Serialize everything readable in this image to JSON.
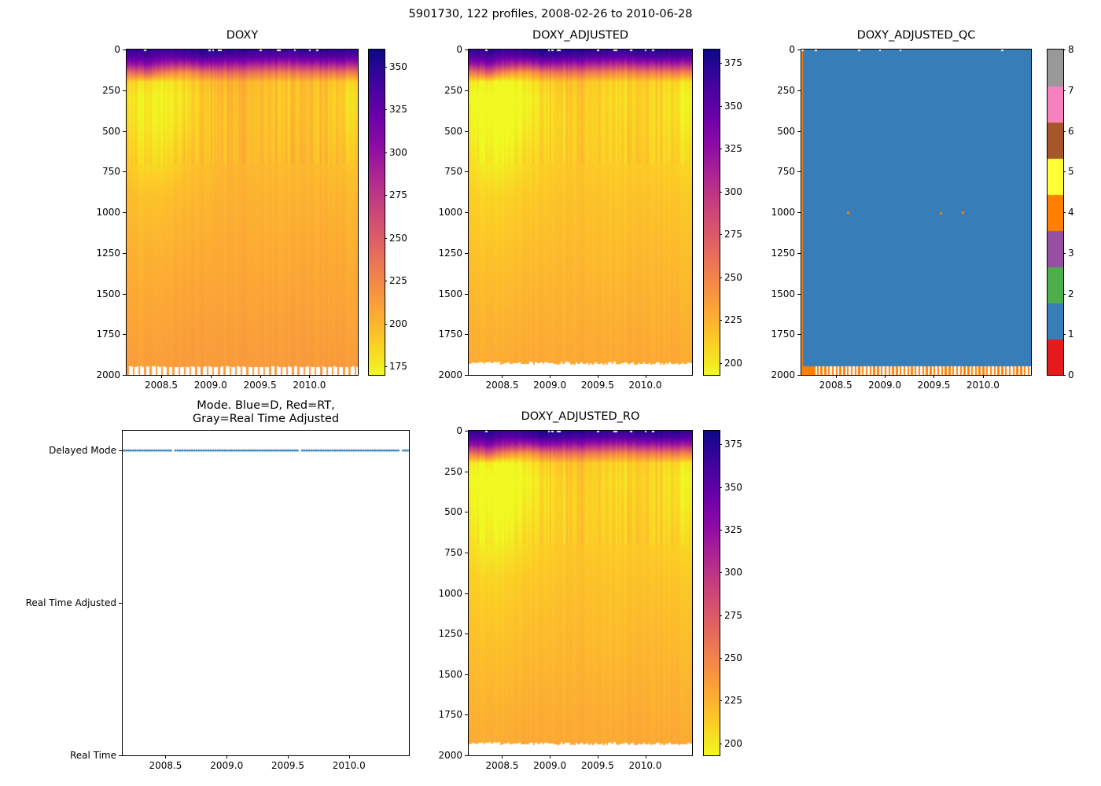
{
  "figure": {
    "title": "5901730, 122 profiles, 2008-02-26 to 2010-06-28"
  },
  "chart_data": [
    {
      "type": "heatmap",
      "title": "DOXY",
      "n_profiles": 122,
      "xlim": [
        2008.15,
        2010.49
      ],
      "x_tick_labels": [
        "2008.5",
        "2009.0",
        "2009.5",
        "2010.0"
      ],
      "x_tick_values": [
        2008.5,
        2009.0,
        2009.5,
        2010.0
      ],
      "ylim": [
        2000,
        0
      ],
      "ylabel_units": "dbar",
      "y_ticks": [
        0,
        250,
        500,
        750,
        1000,
        1250,
        1500,
        1750,
        2000
      ],
      "colormap": "plasma_r",
      "vmin": 170,
      "vmax": 360,
      "colorbar_ticks": [
        175,
        200,
        225,
        250,
        275,
        300,
        325,
        350
      ],
      "grid": {
        "depths": [
          0,
          40,
          90,
          140,
          200,
          300,
          450,
          650,
          900,
          1300,
          1700,
          2000
        ],
        "times": [
          2008.15,
          2008.35,
          2008.55,
          2008.75,
          2008.95,
          2009.2,
          2009.5,
          2009.8,
          2010.1,
          2010.49
        ],
        "values": [
          [
            342,
            348,
            340,
            345,
            352,
            350,
            347,
            344,
            350,
            346
          ],
          [
            331,
            336,
            326,
            330,
            340,
            336,
            332,
            328,
            336,
            332
          ],
          [
            296,
            305,
            288,
            282,
            300,
            296,
            290,
            284,
            294,
            290
          ],
          [
            238,
            252,
            228,
            218,
            240,
            246,
            238,
            230,
            240,
            234
          ],
          [
            188,
            180,
            176,
            184,
            196,
            204,
            198,
            194,
            198,
            186
          ],
          [
            178,
            172,
            172,
            178,
            192,
            200,
            196,
            192,
            196,
            180
          ],
          [
            182,
            174,
            174,
            182,
            192,
            198,
            196,
            194,
            196,
            184
          ],
          [
            190,
            180,
            182,
            190,
            195,
            200,
            198,
            197,
            198,
            192
          ],
          [
            198,
            193,
            195,
            198,
            200,
            203,
            202,
            201,
            202,
            199
          ],
          [
            204,
            202,
            203,
            205,
            206,
            207,
            206,
            206,
            207,
            205
          ],
          [
            209,
            208,
            209,
            210,
            211,
            211,
            211,
            211,
            211,
            210
          ],
          [
            213,
            212,
            213,
            214,
            214,
            215,
            214,
            214,
            215,
            214
          ]
        ]
      },
      "bottom_gap": {
        "base": 1950,
        "jitter": 8,
        "tooth_mod": 3
      }
    },
    {
      "type": "heatmap",
      "title": "DOXY_ADJUSTED",
      "n_profiles": 122,
      "xlim": [
        2008.15,
        2010.49
      ],
      "x_tick_labels": [
        "2008.5",
        "2009.0",
        "2009.5",
        "2010.0"
      ],
      "x_tick_values": [
        2008.5,
        2009.0,
        2009.5,
        2010.0
      ],
      "ylim": [
        2000,
        0
      ],
      "y_ticks": [
        0,
        250,
        500,
        750,
        1000,
        1250,
        1500,
        1750,
        2000
      ],
      "colormap": "plasma_r",
      "vmin": 193,
      "vmax": 383,
      "colorbar_ticks": [
        200,
        225,
        250,
        275,
        300,
        325,
        350,
        375
      ],
      "grid": {
        "depths": [
          0,
          40,
          90,
          140,
          200,
          300,
          450,
          650,
          900,
          1300,
          1700,
          2000
        ],
        "times": [
          2008.15,
          2008.35,
          2008.55,
          2008.75,
          2008.95,
          2009.2,
          2009.5,
          2009.8,
          2010.1,
          2010.49
        ],
        "values": [
          [
            368,
            374,
            366,
            371,
            378,
            376,
            373,
            370,
            376,
            372
          ],
          [
            356,
            361,
            350,
            355,
            366,
            361,
            357,
            353,
            361,
            357
          ],
          [
            318,
            328,
            310,
            303,
            323,
            318,
            312,
            305,
            316,
            312
          ],
          [
            256,
            271,
            245,
            234,
            258,
            264,
            256,
            247,
            258,
            252
          ],
          [
            202,
            194,
            189,
            198,
            211,
            219,
            213,
            209,
            213,
            200
          ],
          [
            191,
            185,
            185,
            191,
            206,
            215,
            211,
            206,
            211,
            194
          ],
          [
            196,
            187,
            187,
            196,
            206,
            213,
            211,
            209,
            211,
            198
          ],
          [
            204,
            194,
            196,
            204,
            210,
            215,
            213,
            212,
            213,
            206
          ],
          [
            213,
            207,
            210,
            213,
            215,
            218,
            217,
            216,
            217,
            214
          ],
          [
            219,
            217,
            218,
            220,
            221,
            223,
            221,
            221,
            223,
            220
          ],
          [
            225,
            224,
            225,
            226,
            227,
            227,
            227,
            227,
            227,
            226
          ],
          [
            229,
            228,
            229,
            230,
            230,
            231,
            230,
            230,
            231,
            230
          ]
        ]
      },
      "bottom_gap": {
        "base": 1928,
        "jitter": 18,
        "tooth_mod": 0
      }
    },
    {
      "type": "qc_heatmap",
      "title": "DOXY_ADJUSTED_QC",
      "n_profiles": 122,
      "xlim": [
        2008.15,
        2010.49
      ],
      "x_tick_labels": [
        "2008.5",
        "2009.0",
        "2009.5",
        "2010.0"
      ],
      "x_tick_values": [
        2008.5,
        2009.0,
        2009.5,
        2010.0
      ],
      "ylim": [
        2000,
        0
      ],
      "y_ticks": [
        0,
        250,
        500,
        750,
        1000,
        1250,
        1500,
        1750,
        2000
      ],
      "dominant_qc": 1,
      "qc_levels": [
        0,
        1,
        2,
        3,
        4,
        5,
        6,
        7,
        8
      ],
      "qc_colors": [
        "#e41a1c",
        "#377eb8",
        "#4daf4a",
        "#984ea3",
        "#ff7f00",
        "#ffff33",
        "#a65628",
        "#f781bf",
        "#999999"
      ],
      "colorbar_ticks": [
        0,
        1,
        2,
        3,
        4,
        5,
        6,
        7,
        8
      ],
      "qc4_first_profile": true,
      "qc4_dots": [
        [
          2008.62,
          1000
        ],
        [
          2009.57,
          1005
        ],
        [
          2009.79,
          1000
        ]
      ],
      "bottom_gap": {
        "base": 1945,
        "jitter": 6,
        "tooth_mod": 2
      }
    },
    {
      "type": "scatter",
      "title_line1": "Mode. Blue=D, Red=RT,",
      "title_line2": "Gray=Real Time Adjusted",
      "n_profiles": 122,
      "xlim": [
        2008.15,
        2010.49
      ],
      "x_tick_labels": [
        "2008.5",
        "2009.0",
        "2009.5",
        "2010.0"
      ],
      "x_tick_values": [
        2008.5,
        2009.0,
        2009.5,
        2010.0
      ],
      "ylim": [
        0,
        2.13
      ],
      "y_categories": [
        "Delayed Mode",
        "Real Time Adjusted",
        "Real Time"
      ],
      "y_values": [
        2,
        1,
        0
      ],
      "series": [
        {
          "name": "mode",
          "color": "#1f77b4",
          "value": "Delayed Mode",
          "y_value": 2,
          "n_points": 122
        }
      ]
    },
    {
      "type": "heatmap",
      "title": "DOXY_ADJUSTED_RO",
      "n_profiles": 122,
      "xlim": [
        2008.15,
        2010.49
      ],
      "x_tick_labels": [
        "2008.5",
        "2009.0",
        "2009.5",
        "2010.0"
      ],
      "x_tick_values": [
        2008.5,
        2009.0,
        2009.5,
        2010.0
      ],
      "ylim": [
        2000,
        0
      ],
      "y_ticks": [
        0,
        250,
        500,
        750,
        1000,
        1250,
        1500,
        1750,
        2000
      ],
      "colormap": "plasma_r",
      "vmin": 193,
      "vmax": 383,
      "colorbar_ticks": [
        200,
        225,
        250,
        275,
        300,
        325,
        350,
        375
      ],
      "grid": {
        "depths": [
          0,
          40,
          90,
          140,
          200,
          300,
          450,
          650,
          900,
          1300,
          1700,
          2000
        ],
        "times": [
          2008.15,
          2008.35,
          2008.55,
          2008.75,
          2008.95,
          2009.2,
          2009.5,
          2009.8,
          2010.1,
          2010.49
        ],
        "values": [
          [
            368,
            374,
            366,
            371,
            378,
            376,
            373,
            370,
            376,
            372
          ],
          [
            356,
            361,
            350,
            355,
            366,
            361,
            357,
            353,
            361,
            357
          ],
          [
            318,
            328,
            310,
            303,
            323,
            318,
            312,
            305,
            316,
            312
          ],
          [
            256,
            271,
            245,
            234,
            258,
            264,
            256,
            247,
            258,
            252
          ],
          [
            202,
            194,
            189,
            198,
            211,
            219,
            213,
            209,
            213,
            200
          ],
          [
            191,
            185,
            185,
            191,
            206,
            215,
            211,
            206,
            211,
            194
          ],
          [
            196,
            187,
            187,
            196,
            206,
            213,
            211,
            209,
            211,
            198
          ],
          [
            204,
            194,
            196,
            204,
            210,
            215,
            213,
            212,
            213,
            206
          ],
          [
            213,
            207,
            210,
            213,
            215,
            218,
            217,
            216,
            217,
            214
          ],
          [
            219,
            217,
            218,
            220,
            221,
            223,
            221,
            221,
            223,
            220
          ],
          [
            225,
            224,
            225,
            226,
            227,
            227,
            227,
            227,
            227,
            226
          ],
          [
            229,
            228,
            229,
            230,
            230,
            231,
            230,
            230,
            231,
            230
          ]
        ]
      },
      "bottom_gap": {
        "base": 1928,
        "jitter": 18,
        "tooth_mod": 0
      }
    }
  ]
}
